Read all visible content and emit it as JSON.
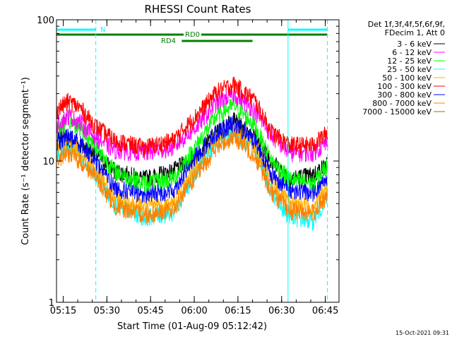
{
  "chart_data": {
    "type": "line",
    "title": "RHESSI Count Rates",
    "xlabel": "Start Time (01-Aug-09 05:12:42)",
    "ylabel": "Count Rate (s⁻¹ detector segment⁻¹)",
    "y_scale": "log",
    "ylim": [
      1,
      100
    ],
    "xlim_minutes_from_start": [
      0,
      97
    ],
    "y_tick_labels": [
      "1",
      "10",
      "100"
    ],
    "x_tick_labels": [
      "05:15",
      "05:30",
      "05:45",
      "06:00",
      "06:15",
      "06:30",
      "06:45"
    ],
    "x_tick_minutes_from_start": [
      2.3,
      17.3,
      32.3,
      47.3,
      62.3,
      77.3,
      92.3
    ],
    "legend": {
      "placement": "right",
      "header": [
        "Det 1f,3f,4f,5f,6f,9f,",
        "FDecim 1, Att 0"
      ]
    },
    "series": [
      {
        "name": "3 - 6 keV",
        "color": "#000000",
        "anchors": [
          [
            0,
            13.5
          ],
          [
            2,
            15.5
          ],
          [
            5,
            14
          ],
          [
            10,
            12.5
          ],
          [
            14,
            11
          ],
          [
            20,
            8.5
          ],
          [
            30,
            7.5
          ],
          [
            40,
            8.5
          ],
          [
            48,
            11
          ],
          [
            55,
            16
          ],
          [
            61,
            19.5
          ],
          [
            68,
            15
          ],
          [
            74,
            10
          ],
          [
            80,
            7.5
          ],
          [
            88,
            8
          ],
          [
            96,
            10.5
          ]
        ]
      },
      {
        "name": "6 - 12 keV",
        "color": "#ff00ff",
        "anchors": [
          [
            0,
            18
          ],
          [
            4,
            21
          ],
          [
            8,
            19
          ],
          [
            13,
            15
          ],
          [
            20,
            12
          ],
          [
            30,
            11.5
          ],
          [
            40,
            12.5
          ],
          [
            48,
            17.5
          ],
          [
            55,
            26
          ],
          [
            61,
            30
          ],
          [
            68,
            23
          ],
          [
            74,
            15
          ],
          [
            80,
            11.5
          ],
          [
            88,
            11.5
          ],
          [
            96,
            15
          ]
        ]
      },
      {
        "name": "12 - 25 keV",
        "color": "#00ff00",
        "anchors": [
          [
            0,
            16.5
          ],
          [
            4,
            19.5
          ],
          [
            8,
            17.5
          ],
          [
            13,
            13
          ],
          [
            20,
            8.5
          ],
          [
            30,
            7
          ],
          [
            40,
            7.5
          ],
          [
            48,
            13
          ],
          [
            55,
            21
          ],
          [
            61,
            25
          ],
          [
            68,
            18
          ],
          [
            74,
            10
          ],
          [
            80,
            7.5
          ],
          [
            88,
            7
          ],
          [
            96,
            11
          ]
        ]
      },
      {
        "name": "25 - 50 keV",
        "color": "#00ffff",
        "anchors": [
          [
            0,
            11.5
          ],
          [
            4,
            13
          ],
          [
            8,
            11
          ],
          [
            13,
            8
          ],
          [
            20,
            5
          ],
          [
            30,
            4
          ],
          [
            40,
            4.3
          ],
          [
            48,
            8.5
          ],
          [
            55,
            14
          ],
          [
            61,
            16
          ],
          [
            68,
            12
          ],
          [
            74,
            6
          ],
          [
            80,
            4
          ],
          [
            88,
            3.8
          ],
          [
            96,
            7
          ]
        ]
      },
      {
        "name": "50 - 100 keV",
        "color": "#ffb000",
        "anchors": [
          [
            0,
            12.5
          ],
          [
            4,
            13.5
          ],
          [
            8,
            12
          ],
          [
            13,
            9
          ],
          [
            20,
            5.5
          ],
          [
            30,
            4.8
          ],
          [
            40,
            5
          ],
          [
            48,
            9.5
          ],
          [
            55,
            15
          ],
          [
            61,
            17.5
          ],
          [
            68,
            13
          ],
          [
            74,
            7
          ],
          [
            80,
            5
          ],
          [
            88,
            4.8
          ],
          [
            96,
            8
          ]
        ]
      },
      {
        "name": "100 - 300 keV",
        "color": "#ff0000",
        "anchors": [
          [
            0,
            23
          ],
          [
            4,
            26.5
          ],
          [
            8,
            24
          ],
          [
            13,
            18
          ],
          [
            20,
            14
          ],
          [
            30,
            12.5
          ],
          [
            40,
            14
          ],
          [
            48,
            21
          ],
          [
            55,
            31
          ],
          [
            61,
            35
          ],
          [
            68,
            27
          ],
          [
            74,
            16
          ],
          [
            80,
            13
          ],
          [
            88,
            13
          ],
          [
            96,
            18
          ]
        ]
      },
      {
        "name": "300 - 800 keV",
        "color": "#0000ff",
        "anchors": [
          [
            0,
            13.5
          ],
          [
            4,
            15
          ],
          [
            8,
            13.5
          ],
          [
            13,
            10.5
          ],
          [
            20,
            6.5
          ],
          [
            30,
            5.8
          ],
          [
            40,
            6.2
          ],
          [
            48,
            11
          ],
          [
            55,
            16
          ],
          [
            61,
            18.5
          ],
          [
            68,
            14
          ],
          [
            74,
            8
          ],
          [
            80,
            6.3
          ],
          [
            88,
            6
          ],
          [
            96,
            9
          ]
        ]
      },
      {
        "name": "800 - 7000 keV",
        "color": "#ff8000",
        "anchors": [
          [
            0,
            10.5
          ],
          [
            4,
            11.5
          ],
          [
            8,
            10
          ],
          [
            13,
            8
          ],
          [
            20,
            4.8
          ],
          [
            30,
            4.2
          ],
          [
            40,
            4.5
          ],
          [
            48,
            8
          ],
          [
            55,
            12.5
          ],
          [
            61,
            15
          ],
          [
            68,
            11
          ],
          [
            74,
            6
          ],
          [
            80,
            4.5
          ],
          [
            88,
            4.3
          ],
          [
            96,
            6.5
          ]
        ]
      },
      {
        "name": "7000 - 15000 keV",
        "color": "#808000",
        "anchors": []
      }
    ],
    "attenuator_bars": [
      {
        "label": "N",
        "color": "#00ffff",
        "segments": [
          [
            0,
            13.5
          ],
          [
            79.5,
            93
          ]
        ]
      },
      {
        "label": "RD0",
        "color": "#008000",
        "segments": [
          [
            0,
            67.3
          ],
          [
            67.3,
            93
          ]
        ]
      },
      {
        "label": "RD4",
        "color": "#008000",
        "segments": [
          [
            43,
            67.3
          ]
        ]
      }
    ],
    "vertical_lines": [
      {
        "color": "#00ffff",
        "style": "solid",
        "x": [
          0,
          79.5
        ]
      },
      {
        "color": "#00ffff",
        "style": "dashed",
        "x": [
          13.5,
          93
        ]
      }
    ]
  },
  "footer_timestamp": "15-Oct-2021 09:31"
}
